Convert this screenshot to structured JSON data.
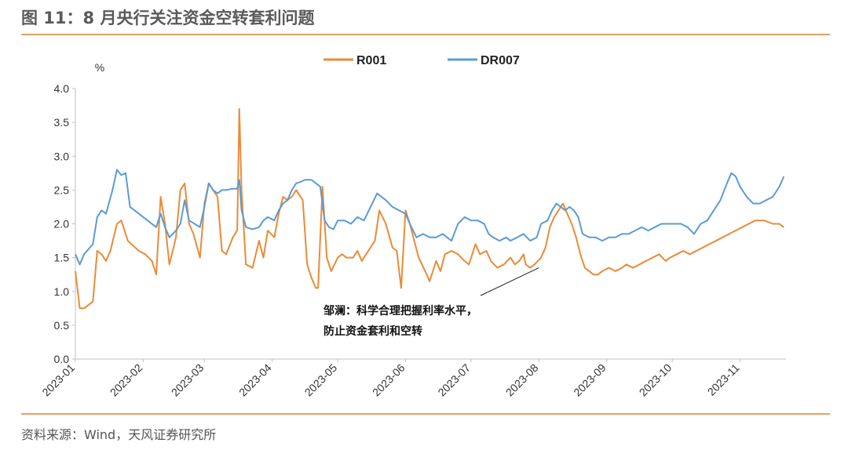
{
  "figure": {
    "title": "图 11：8 月央行关注资金空转套利问题",
    "source": "资料来源：Wind，天风证券研究所"
  },
  "colors": {
    "R001": "#e98b38",
    "DR007": "#5b9bd5",
    "rule": "#e3a25f"
  },
  "chart_data": {
    "type": "line",
    "ylabel": "%",
    "ylim": [
      0,
      4.0
    ],
    "yticks": [
      "0.0",
      "0.5",
      "1.0",
      "1.5",
      "2.0",
      "2.5",
      "3.0",
      "3.5",
      "4.0"
    ],
    "xlim": [
      "2023-01-01",
      "2023-11-22"
    ],
    "xticks": [
      "2023-01",
      "2023-02",
      "2023-03",
      "2023-04",
      "2023-05",
      "2023-06",
      "2023-07",
      "2023-08",
      "2023-09",
      "2023-10",
      "2023-11"
    ],
    "grid": false,
    "legend": "top-center",
    "series": [
      {
        "name": "R001",
        "points": [
          [
            "2023-01-01",
            1.3
          ],
          [
            "2023-01-03",
            0.75
          ],
          [
            "2023-01-05",
            0.75
          ],
          [
            "2023-01-09",
            0.85
          ],
          [
            "2023-01-11",
            1.6
          ],
          [
            "2023-01-13",
            1.55
          ],
          [
            "2023-01-15",
            1.45
          ],
          [
            "2023-01-17",
            1.6
          ],
          [
            "2023-01-20",
            2.0
          ],
          [
            "2023-01-22",
            2.05
          ],
          [
            "2023-01-25",
            1.75
          ],
          [
            "2023-01-30",
            1.6
          ],
          [
            "2023-02-02",
            1.55
          ],
          [
            "2023-02-05",
            1.45
          ],
          [
            "2023-02-07",
            1.25
          ],
          [
            "2023-02-09",
            2.4
          ],
          [
            "2023-02-11",
            2.0
          ],
          [
            "2023-02-13",
            1.4
          ],
          [
            "2023-02-16",
            1.8
          ],
          [
            "2023-02-18",
            2.5
          ],
          [
            "2023-02-20",
            2.6
          ],
          [
            "2023-02-22",
            2.0
          ],
          [
            "2023-02-24",
            1.85
          ],
          [
            "2023-02-27",
            1.5
          ],
          [
            "2023-03-01",
            2.3
          ],
          [
            "2023-03-03",
            2.6
          ],
          [
            "2023-03-05",
            2.5
          ],
          [
            "2023-03-07",
            2.4
          ],
          [
            "2023-03-09",
            1.6
          ],
          [
            "2023-03-11",
            1.55
          ],
          [
            "2023-03-14",
            1.8
          ],
          [
            "2023-03-16",
            1.9
          ],
          [
            "2023-03-17",
            3.7
          ],
          [
            "2023-03-18",
            2.5
          ],
          [
            "2023-03-20",
            1.4
          ],
          [
            "2023-03-23",
            1.35
          ],
          [
            "2023-03-26",
            1.75
          ],
          [
            "2023-03-28",
            1.5
          ],
          [
            "2023-03-30",
            1.9
          ],
          [
            "2023-04-02",
            1.8
          ],
          [
            "2023-04-04",
            2.15
          ],
          [
            "2023-04-06",
            2.4
          ],
          [
            "2023-04-08",
            2.35
          ],
          [
            "2023-04-10",
            2.4
          ],
          [
            "2023-04-12",
            2.5
          ],
          [
            "2023-04-15",
            2.35
          ],
          [
            "2023-04-17",
            1.4
          ],
          [
            "2023-04-19",
            1.2
          ],
          [
            "2023-04-21",
            1.05
          ],
          [
            "2023-04-22",
            1.05
          ],
          [
            "2023-04-24",
            2.55
          ],
          [
            "2023-04-26",
            1.5
          ],
          [
            "2023-04-28",
            1.3
          ],
          [
            "2023-05-01",
            1.5
          ],
          [
            "2023-05-03",
            1.55
          ],
          [
            "2023-05-05",
            1.5
          ],
          [
            "2023-05-08",
            1.5
          ],
          [
            "2023-05-10",
            1.6
          ],
          [
            "2023-05-12",
            1.45
          ],
          [
            "2023-05-15",
            1.6
          ],
          [
            "2023-05-18",
            1.75
          ],
          [
            "2023-05-20",
            2.2
          ],
          [
            "2023-05-23",
            2.0
          ],
          [
            "2023-05-26",
            1.65
          ],
          [
            "2023-05-28",
            1.6
          ],
          [
            "2023-05-30",
            1.05
          ],
          [
            "2023-06-01",
            2.2
          ],
          [
            "2023-06-03",
            2.0
          ],
          [
            "2023-06-05",
            1.75
          ],
          [
            "2023-06-07",
            1.5
          ],
          [
            "2023-06-10",
            1.3
          ],
          [
            "2023-06-12",
            1.15
          ],
          [
            "2023-06-15",
            1.45
          ],
          [
            "2023-06-17",
            1.3
          ],
          [
            "2023-06-19",
            1.55
          ],
          [
            "2023-06-22",
            1.6
          ],
          [
            "2023-06-25",
            1.55
          ],
          [
            "2023-06-28",
            1.45
          ],
          [
            "2023-06-30",
            1.4
          ],
          [
            "2023-07-03",
            1.7
          ],
          [
            "2023-07-05",
            1.55
          ],
          [
            "2023-07-08",
            1.6
          ],
          [
            "2023-07-10",
            1.45
          ],
          [
            "2023-07-13",
            1.35
          ],
          [
            "2023-07-16",
            1.4
          ],
          [
            "2023-07-19",
            1.5
          ],
          [
            "2023-07-21",
            1.4
          ],
          [
            "2023-07-23",
            1.45
          ],
          [
            "2023-07-25",
            1.55
          ],
          [
            "2023-07-26",
            1.4
          ],
          [
            "2023-07-28",
            1.35
          ],
          [
            "2023-07-30",
            1.4
          ],
          [
            "2023-08-02",
            1.5
          ],
          [
            "2023-08-04",
            1.65
          ],
          [
            "2023-08-06",
            1.95
          ],
          [
            "2023-08-08",
            2.1
          ],
          [
            "2023-08-10",
            2.2
          ],
          [
            "2023-08-12",
            2.3
          ],
          [
            "2023-08-14",
            2.15
          ],
          [
            "2023-08-16",
            2.0
          ],
          [
            "2023-08-18",
            1.8
          ],
          [
            "2023-08-20",
            1.55
          ],
          [
            "2023-08-22",
            1.35
          ],
          [
            "2023-08-24",
            1.3
          ],
          [
            "2023-08-26",
            1.25
          ],
          [
            "2023-08-28",
            1.25
          ],
          [
            "2023-08-30",
            1.3
          ],
          [
            "2023-09-02",
            1.35
          ],
          [
            "2023-09-05",
            1.3
          ],
          [
            "2023-09-08",
            1.35
          ],
          [
            "2023-09-10",
            1.4
          ],
          [
            "2023-09-13",
            1.35
          ],
          [
            "2023-09-16",
            1.4
          ],
          [
            "2023-09-19",
            1.45
          ],
          [
            "2023-09-22",
            1.5
          ],
          [
            "2023-09-25",
            1.55
          ],
          [
            "2023-09-28",
            1.45
          ],
          [
            "2023-09-30",
            1.5
          ],
          [
            "2023-10-03",
            1.55
          ],
          [
            "2023-10-06",
            1.6
          ],
          [
            "2023-10-09",
            1.55
          ],
          [
            "2023-10-12",
            1.6
          ],
          [
            "2023-10-15",
            1.65
          ],
          [
            "2023-10-18",
            1.7
          ],
          [
            "2023-10-21",
            1.75
          ],
          [
            "2023-10-24",
            1.8
          ],
          [
            "2023-10-27",
            1.85
          ],
          [
            "2023-10-30",
            1.9
          ],
          [
            "2023-11-02",
            1.95
          ],
          [
            "2023-11-05",
            2.0
          ],
          [
            "2023-11-08",
            2.05
          ],
          [
            "2023-11-12",
            2.05
          ],
          [
            "2023-11-16",
            2.0
          ],
          [
            "2023-11-19",
            2.0
          ],
          [
            "2023-11-21",
            1.95
          ]
        ]
      },
      {
        "name": "DR007",
        "points": [
          [
            "2023-01-01",
            1.55
          ],
          [
            "2023-01-03",
            1.4
          ],
          [
            "2023-01-05",
            1.55
          ],
          [
            "2023-01-09",
            1.7
          ],
          [
            "2023-01-11",
            2.1
          ],
          [
            "2023-01-13",
            2.2
          ],
          [
            "2023-01-15",
            2.15
          ],
          [
            "2023-01-18",
            2.5
          ],
          [
            "2023-01-20",
            2.8
          ],
          [
            "2023-01-22",
            2.72
          ],
          [
            "2023-01-24",
            2.75
          ],
          [
            "2023-01-26",
            2.25
          ],
          [
            "2023-01-30",
            2.15
          ],
          [
            "2023-02-03",
            2.05
          ],
          [
            "2023-02-07",
            1.95
          ],
          [
            "2023-02-09",
            2.15
          ],
          [
            "2023-02-11",
            1.95
          ],
          [
            "2023-02-13",
            1.8
          ],
          [
            "2023-02-16",
            1.9
          ],
          [
            "2023-02-18",
            2.0
          ],
          [
            "2023-02-20",
            2.35
          ],
          [
            "2023-02-22",
            2.05
          ],
          [
            "2023-02-27",
            1.95
          ],
          [
            "2023-03-01",
            2.25
          ],
          [
            "2023-03-03",
            2.6
          ],
          [
            "2023-03-05",
            2.5
          ],
          [
            "2023-03-07",
            2.45
          ],
          [
            "2023-03-09",
            2.5
          ],
          [
            "2023-03-11",
            2.5
          ],
          [
            "2023-03-14",
            2.52
          ],
          [
            "2023-03-16",
            2.52
          ],
          [
            "2023-03-17",
            2.65
          ],
          [
            "2023-03-18",
            2.2
          ],
          [
            "2023-03-20",
            1.95
          ],
          [
            "2023-03-23",
            1.92
          ],
          [
            "2023-03-26",
            1.95
          ],
          [
            "2023-03-28",
            2.05
          ],
          [
            "2023-03-30",
            2.1
          ],
          [
            "2023-04-02",
            2.05
          ],
          [
            "2023-04-04",
            2.2
          ],
          [
            "2023-04-06",
            2.3
          ],
          [
            "2023-04-08",
            2.35
          ],
          [
            "2023-04-10",
            2.5
          ],
          [
            "2023-04-12",
            2.6
          ],
          [
            "2023-04-14",
            2.62
          ],
          [
            "2023-04-16",
            2.65
          ],
          [
            "2023-04-19",
            2.65
          ],
          [
            "2023-04-21",
            2.6
          ],
          [
            "2023-04-23",
            2.55
          ],
          [
            "2023-04-25",
            2.05
          ],
          [
            "2023-04-27",
            1.95
          ],
          [
            "2023-04-29",
            1.92
          ],
          [
            "2023-05-01",
            2.05
          ],
          [
            "2023-05-04",
            2.05
          ],
          [
            "2023-05-07",
            2.0
          ],
          [
            "2023-05-10",
            2.1
          ],
          [
            "2023-05-13",
            2.05
          ],
          [
            "2023-05-16",
            2.25
          ],
          [
            "2023-05-19",
            2.45
          ],
          [
            "2023-05-21",
            2.4
          ],
          [
            "2023-05-23",
            2.35
          ],
          [
            "2023-05-26",
            2.25
          ],
          [
            "2023-05-29",
            2.2
          ],
          [
            "2023-06-01",
            2.15
          ],
          [
            "2023-06-03",
            2.0
          ],
          [
            "2023-06-06",
            1.8
          ],
          [
            "2023-06-09",
            1.85
          ],
          [
            "2023-06-12",
            1.8
          ],
          [
            "2023-06-15",
            1.8
          ],
          [
            "2023-06-18",
            1.85
          ],
          [
            "2023-06-20",
            1.8
          ],
          [
            "2023-06-22",
            1.75
          ],
          [
            "2023-06-25",
            2.0
          ],
          [
            "2023-06-28",
            2.1
          ],
          [
            "2023-07-01",
            2.05
          ],
          [
            "2023-07-04",
            2.05
          ],
          [
            "2023-07-07",
            2.0
          ],
          [
            "2023-07-09",
            1.85
          ],
          [
            "2023-07-11",
            1.8
          ],
          [
            "2023-07-14",
            1.75
          ],
          [
            "2023-07-17",
            1.8
          ],
          [
            "2023-07-19",
            1.75
          ],
          [
            "2023-07-22",
            1.8
          ],
          [
            "2023-07-25",
            1.85
          ],
          [
            "2023-07-28",
            1.75
          ],
          [
            "2023-07-31",
            1.8
          ],
          [
            "2023-08-02",
            2.0
          ],
          [
            "2023-08-05",
            2.05
          ],
          [
            "2023-08-07",
            2.2
          ],
          [
            "2023-08-09",
            2.3
          ],
          [
            "2023-08-11",
            2.25
          ],
          [
            "2023-08-13",
            2.2
          ],
          [
            "2023-08-15",
            2.25
          ],
          [
            "2023-08-17",
            2.2
          ],
          [
            "2023-08-19",
            2.1
          ],
          [
            "2023-08-21",
            1.85
          ],
          [
            "2023-08-24",
            1.8
          ],
          [
            "2023-08-27",
            1.8
          ],
          [
            "2023-08-30",
            1.75
          ],
          [
            "2023-09-02",
            1.8
          ],
          [
            "2023-09-05",
            1.8
          ],
          [
            "2023-09-08",
            1.85
          ],
          [
            "2023-09-11",
            1.85
          ],
          [
            "2023-09-14",
            1.9
          ],
          [
            "2023-09-17",
            1.95
          ],
          [
            "2023-09-20",
            1.9
          ],
          [
            "2023-09-23",
            1.95
          ],
          [
            "2023-09-26",
            2.0
          ],
          [
            "2023-09-29",
            2.0
          ],
          [
            "2023-10-02",
            2.0
          ],
          [
            "2023-10-05",
            2.0
          ],
          [
            "2023-10-08",
            1.95
          ],
          [
            "2023-10-11",
            1.85
          ],
          [
            "2023-10-14",
            2.0
          ],
          [
            "2023-10-17",
            2.05
          ],
          [
            "2023-10-20",
            2.2
          ],
          [
            "2023-10-23",
            2.35
          ],
          [
            "2023-10-26",
            2.6
          ],
          [
            "2023-10-28",
            2.75
          ],
          [
            "2023-10-30",
            2.7
          ],
          [
            "2023-11-01",
            2.55
          ],
          [
            "2023-11-04",
            2.4
          ],
          [
            "2023-11-07",
            2.3
          ],
          [
            "2023-11-10",
            2.3
          ],
          [
            "2023-11-13",
            2.35
          ],
          [
            "2023-11-16",
            2.4
          ],
          [
            "2023-11-19",
            2.55
          ],
          [
            "2023-11-21",
            2.7
          ]
        ]
      }
    ],
    "annotation": {
      "lines": [
        "邹澜：科学合理把握利率水平，",
        "防止资金套利和空转"
      ],
      "target_date": "2023-08-01",
      "target_value": 1.35
    }
  }
}
